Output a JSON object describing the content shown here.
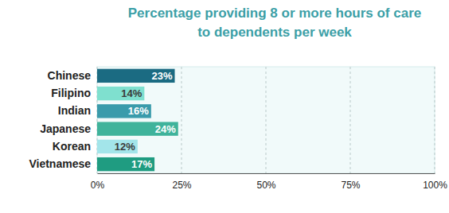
{
  "chart_data": {
    "type": "bar",
    "orientation": "horizontal",
    "title": "Percentage providing 8 or more hours of care\nto dependents per week",
    "categories": [
      "Chinese",
      "Filipino",
      "Indian",
      "Japanese",
      "Korean",
      "Vietnamese"
    ],
    "values": [
      23,
      14,
      16,
      24,
      12,
      17
    ],
    "value_labels": [
      "23%",
      "14%",
      "16%",
      "24%",
      "12%",
      "17%"
    ],
    "colors": [
      "#1b6b82",
      "#7fe0cf",
      "#3a9bab",
      "#3fb39b",
      "#a3e5ea",
      "#1f9c81"
    ],
    "xlim": [
      0,
      100
    ],
    "xticks": [
      {
        "value": 0,
        "label": "0%"
      },
      {
        "value": 25,
        "label": "25%"
      },
      {
        "value": 50,
        "label": "50%"
      },
      {
        "value": 75,
        "label": "75%"
      },
      {
        "value": 100,
        "label": "100%"
      }
    ],
    "grid": true,
    "data_labels": true
  }
}
